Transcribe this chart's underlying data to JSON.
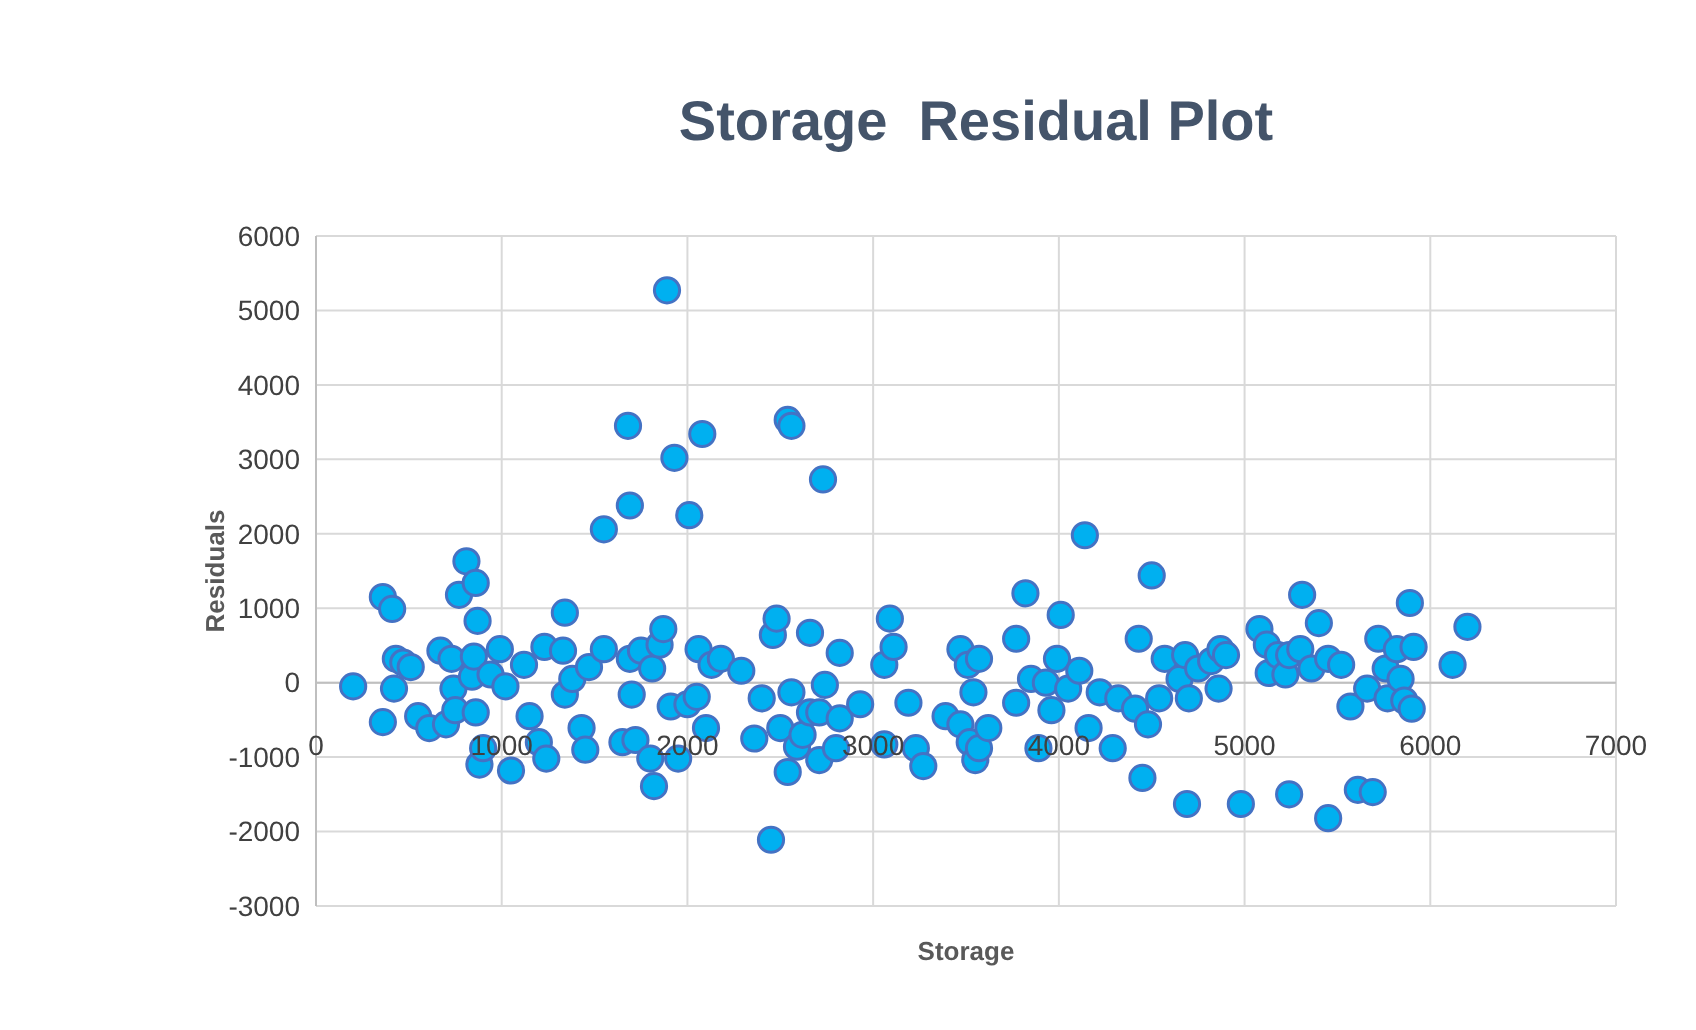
{
  "chart_data": {
    "type": "scatter",
    "title": "Storage  Residual Plot",
    "xlabel": "Storage",
    "ylabel": "Residuals",
    "xlim": [
      0,
      7000
    ],
    "xticks": [
      0,
      1000,
      2000,
      3000,
      4000,
      5000,
      6000,
      7000
    ],
    "ylim": [
      -3000,
      6000
    ],
    "yticks": [
      -3000,
      -2000,
      -1000,
      0,
      1000,
      2000,
      3000,
      4000,
      5000,
      6000
    ],
    "grid": true,
    "marker": "circle",
    "series": [
      {
        "color": "#00b0f0",
        "x": [
          200,
          360,
          410,
          360,
          420,
          430,
          470,
          510,
          550,
          610,
          670,
          700,
          730,
          740,
          750,
          770,
          810,
          860,
          870,
          840,
          860,
          850,
          880,
          900,
          940,
          990,
          1020,
          1050,
          1120,
          1150,
          1200,
          1240,
          1230,
          1340,
          1330,
          1340,
          1380,
          1430,
          1450,
          1470,
          1550,
          1550,
          1650,
          1680,
          1690,
          1690,
          1720,
          1700,
          1750,
          1800,
          1820,
          1810,
          1850,
          1870,
          1890,
          1930,
          1910,
          1950,
          2000,
          2010,
          2050,
          2080,
          2060,
          2100,
          2130,
          2180,
          2290,
          2360,
          2400,
          2450,
          2460,
          2480,
          2500,
          2540,
          2560,
          2540,
          2560,
          2590,
          2620,
          2660,
          2660,
          2710,
          2730,
          2710,
          2740,
          2800,
          2820,
          2820,
          2930,
          3060,
          3060,
          3090,
          3110,
          3190,
          3230,
          3270,
          3390,
          3470,
          3470,
          3510,
          3520,
          3540,
          3550,
          3570,
          3570,
          3620,
          3770,
          3770,
          3820,
          3850,
          3890,
          3930,
          3960,
          3990,
          4010,
          4050,
          4110,
          4140,
          4160,
          4220,
          4290,
          4320,
          4410,
          4430,
          4450,
          4480,
          4500,
          4540,
          4570,
          4650,
          4680,
          4690,
          4700,
          4750,
          4820,
          4860,
          4870,
          4900,
          4980,
          5080,
          5120,
          5130,
          5180,
          5220,
          5240,
          5240,
          5310,
          5300,
          5360,
          5400,
          5450,
          5450,
          5520,
          5570,
          5610,
          5660,
          5690,
          5720,
          5760,
          5770,
          5820,
          5840,
          5860,
          5890,
          5900,
          5910,
          6120,
          6200
        ],
        "values": [
          -50,
          1150,
          990,
          -530,
          -80,
          320,
          270,
          210,
          -450,
          -610,
          430,
          -560,
          320,
          -80,
          -370,
          1180,
          1630,
          1340,
          830,
          80,
          -400,
          350,
          -1100,
          -880,
          110,
          450,
          -50,
          -1180,
          240,
          -450,
          -800,
          -1020,
          480,
          940,
          430,
          -160,
          50,
          -610,
          -900,
          210,
          450,
          2060,
          -800,
          3450,
          320,
          2380,
          -770,
          -160,
          430,
          -1020,
          -1390,
          190,
          510,
          720,
          5270,
          3020,
          -320,
          -1020,
          -290,
          2250,
          -190,
          3340,
          450,
          -610,
          240,
          320,
          160,
          -750,
          -210,
          -2110,
          640,
          860,
          -610,
          3530,
          3450,
          -1200,
          -130,
          -860,
          -700,
          670,
          -400,
          -400,
          2730,
          -1040,
          -30,
          -880,
          400,
          -480,
          -290,
          240,
          -830,
          860,
          480,
          -270,
          -880,
          -1120,
          -450,
          -560,
          450,
          240,
          -800,
          -130,
          -1040,
          -880,
          320,
          -610,
          590,
          -270,
          1200,
          50,
          -880,
          0,
          -370,
          320,
          910,
          -80,
          160,
          1980,
          -610,
          -130,
          -880,
          -210,
          -350,
          590,
          -1280,
          -560,
          1440,
          -210,
          320,
          50,
          370,
          -1630,
          -210,
          190,
          290,
          -80,
          450,
          370,
          -1630,
          720,
          510,
          130,
          370,
          110,
          370,
          -1500,
          1180,
          450,
          190,
          800,
          320,
          -1820,
          240,
          -320,
          -1440,
          -80,
          -1470,
          590,
          190,
          -210,
          450,
          50,
          -240,
          1070,
          -350,
          480,
          240,
          750
        ]
      }
    ]
  }
}
